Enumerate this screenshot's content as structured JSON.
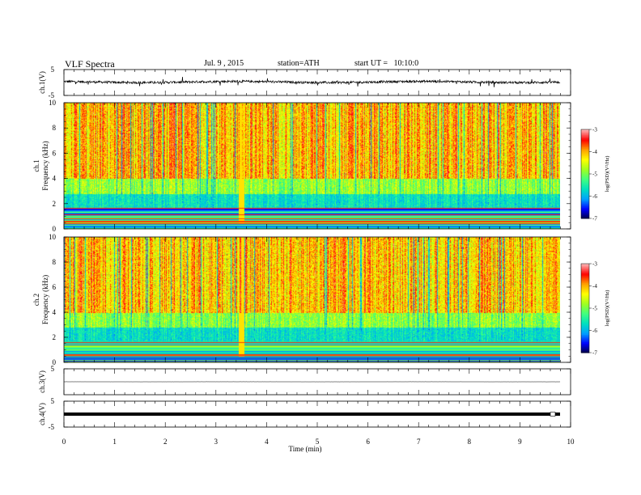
{
  "header": {
    "title": "VLF Spectra",
    "date": "Jul. 9 , 2015",
    "station": "station=ATH",
    "start": "start UT =   10:10:0"
  },
  "chart_data": [
    {
      "type": "line",
      "panel": "ch1-waveform",
      "ylabel": "ch.1(V)",
      "ylim": [
        -5,
        5
      ],
      "yticks": [
        "5",
        "-5"
      ],
      "baseline": 0.2,
      "amplitude": 1.5,
      "color": "#000000"
    },
    {
      "type": "heatmap",
      "panel": "ch1-spectrogram",
      "ylabel": "ch.1\nFrequency (kHz)",
      "ylim": [
        0,
        10
      ],
      "yticks": [
        "0",
        "2",
        "4",
        "6",
        "8",
        "10"
      ],
      "xlim": [
        0,
        9.8
      ],
      "colorbar": {
        "label": "log(PSD)(V²/Hz)",
        "range": [
          -7,
          -3
        ],
        "ticks": [
          "-3",
          "-4",
          "-5",
          "-6",
          "-7"
        ]
      }
    },
    {
      "type": "heatmap",
      "panel": "ch2-spectrogram",
      "ylabel": "ch.2\nFrequency (kHz)",
      "ylim": [
        0,
        10
      ],
      "yticks": [
        "0",
        "2",
        "4",
        "6",
        "8",
        "10"
      ],
      "xlim": [
        0,
        9.8
      ],
      "colorbar": {
        "label": "log(PSD)(V²/Hz)",
        "range": [
          -7,
          -3
        ],
        "ticks": [
          "-3",
          "-4",
          "-5",
          "-6",
          "-7"
        ]
      }
    },
    {
      "type": "line",
      "panel": "ch3-waveform",
      "ylabel": "ch.3(V)",
      "ylim": [
        -5,
        5
      ],
      "yticks": [
        "5"
      ],
      "baseline": 0.0,
      "amplitude": 0.05,
      "color": "#000000"
    },
    {
      "type": "line",
      "panel": "ch4-waveform",
      "ylabel": "ch.4(V)",
      "ylim": [
        -5,
        5
      ],
      "yticks": [
        "5",
        "-5"
      ],
      "baseline": 0.0,
      "amplitude": 0.1,
      "color": "#000000"
    }
  ],
  "xaxis": {
    "label": "Time (min)",
    "range": [
      0,
      10
    ],
    "ticks": [
      "0",
      "1",
      "2",
      "3",
      "4",
      "5",
      "6",
      "7",
      "8",
      "9",
      "10"
    ]
  },
  "colormap": [
    "#000040",
    "#0000ff",
    "#00a0ff",
    "#00e0c0",
    "#40ff80",
    "#a0ff20",
    "#ffff00",
    "#ffa000",
    "#ff0000",
    "#ffb0b0"
  ]
}
